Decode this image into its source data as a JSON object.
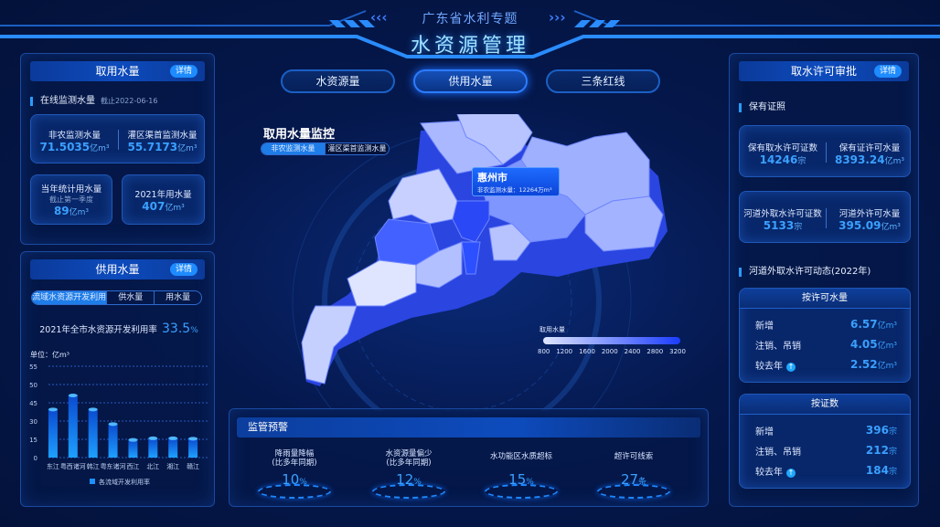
{
  "header": {
    "subtitle": "广东省水利专题",
    "title": "水资源管理",
    "nav": [
      {
        "label": "水资源量"
      },
      {
        "label": "供用水量"
      },
      {
        "label": "三条红线"
      }
    ],
    "active_nav": "供用水量"
  },
  "left_top": {
    "title": "取用水量",
    "detail": "详情",
    "section": "在线监测水量",
    "as_of": "截止2022-06-16",
    "cards": [
      {
        "label": "非农监测水量",
        "value": "71.5035",
        "unit": "亿m³"
      },
      {
        "label": "灌区渠首监测水量",
        "value": "55.7173",
        "unit": "亿m³"
      },
      {
        "label": "当年统计用水量",
        "note": "截止第一季度",
        "value": "89",
        "unit": "亿m³"
      },
      {
        "label": "2021年用水量",
        "value": "407",
        "unit": "亿m³"
      }
    ]
  },
  "left_bottom": {
    "title": "供用水量",
    "detail": "详情",
    "tabs": [
      {
        "label": "流域水资源开发利用"
      },
      {
        "label": "供水量"
      },
      {
        "label": "用水量"
      }
    ],
    "rate_label": "2021年全市水资源开发利用率",
    "rate_value": "33.5",
    "rate_unit": "%"
  },
  "chart_data": {
    "type": "bar",
    "ylabel": "单位：亿m³",
    "y_ticks": [
      "0",
      "15",
      "30",
      "45",
      "50",
      "55"
    ],
    "grid": true,
    "legend": "bottom",
    "categories": [
      "东江",
      "粤西诸河",
      "韩江",
      "粤东诸河",
      "西江",
      "北江",
      "湘江",
      "赣江"
    ],
    "series": [
      {
        "name": "各流域开发利用率",
        "values": [
          39.5,
          47,
          39.5,
          27.5,
          14.5,
          15.8,
          15.8,
          15.5
        ]
      }
    ],
    "color": "#1e8fff"
  },
  "map": {
    "title": "取用水量监控",
    "tabs": [
      {
        "label": "非农监测水量"
      },
      {
        "label": "灌区渠首监测水量"
      }
    ],
    "tooltip": {
      "city": "惠州市",
      "text": "非农监测水量：12264万m³"
    },
    "legend_title": "取用水量",
    "legend_ticks": [
      "800",
      "1200",
      "1600",
      "2000",
      "2400",
      "2800",
      "3200"
    ],
    "color_low": "#dfe6ff",
    "color_high": "#1a3cff"
  },
  "warning": {
    "title": "监管预警",
    "items": [
      {
        "label": "降雨量降幅",
        "label2": "(比多年同期)",
        "value": "10",
        "unit": "%"
      },
      {
        "label": "水资源量偏少",
        "label2": "(比多年同期)",
        "value": "12",
        "unit": "%"
      },
      {
        "label": "水功能区水质超标",
        "label2": "",
        "value": "15",
        "unit": "%"
      },
      {
        "label": "超许可线索",
        "label2": "",
        "value": "27",
        "unit": "条"
      }
    ]
  },
  "right": {
    "title": "取水许可审批",
    "detail": "详情",
    "section1": "保有证照",
    "cards": [
      {
        "label": "保有取水许可证数",
        "value": "14246",
        "unit": "宗"
      },
      {
        "label": "保有证许可水量",
        "value": "8393.24",
        "unit": "亿m³"
      },
      {
        "label": "河道外取水许可证数",
        "value": "5133",
        "unit": "宗"
      },
      {
        "label": "河道外许可水量",
        "value": "395.09",
        "unit": "亿m³"
      }
    ],
    "section2": "河道外取水许可动态(2022年)",
    "by_volume": {
      "title": "按许可水量",
      "rows": [
        {
          "label": "新增",
          "value": "6.57",
          "unit": "亿m³"
        },
        {
          "label": "注销、吊销",
          "value": "4.05",
          "unit": "亿m³"
        },
        {
          "label": "较去年",
          "value": "2.52",
          "unit": "亿m³",
          "trend": "up"
        }
      ]
    },
    "by_count": {
      "title": "按证数",
      "rows": [
        {
          "label": "新增",
          "value": "396",
          "unit": "宗"
        },
        {
          "label": "注销、吊销",
          "value": "212",
          "unit": "宗"
        },
        {
          "label": "较去年",
          "value": "184",
          "unit": "宗",
          "trend": "up"
        }
      ]
    }
  }
}
